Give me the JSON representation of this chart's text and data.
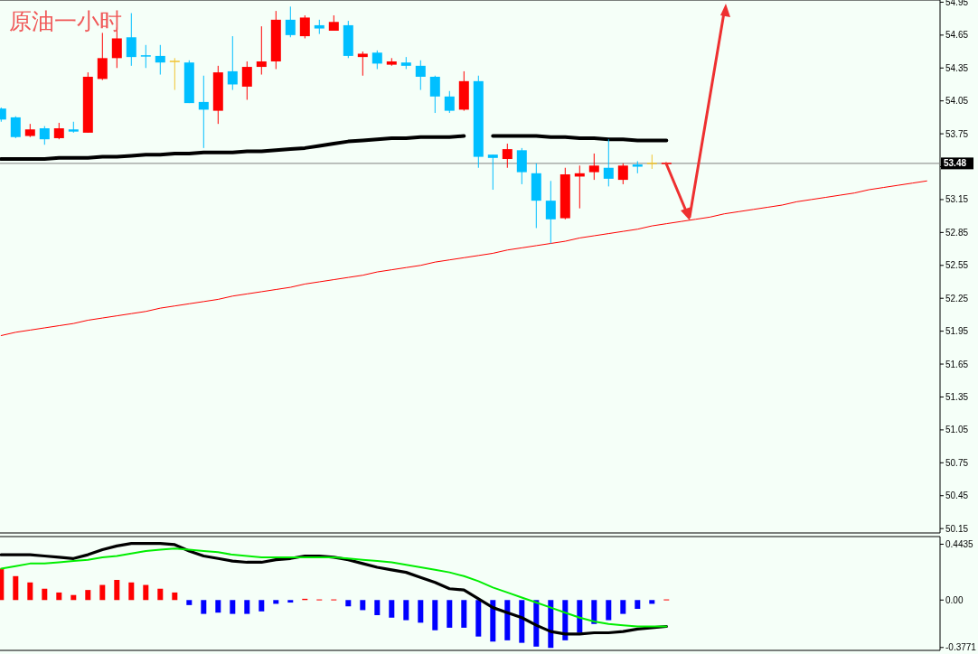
{
  "chart_data": [
    {
      "type": "candlestick",
      "title": "原油一小时",
      "categories": [
        null,
        null,
        null,
        null,
        null,
        null,
        null,
        null,
        null,
        null,
        null,
        null,
        null,
        null,
        null,
        null,
        null,
        null,
        null,
        null,
        null,
        null,
        null,
        null,
        null,
        null,
        null,
        null,
        null,
        null,
        null,
        null,
        null,
        null,
        null,
        null,
        null,
        null,
        null,
        null,
        null,
        null,
        null,
        null,
        null,
        null,
        null,
        null,
        null,
        null,
        null,
        null,
        null,
        null,
        null,
        null,
        null,
        null,
        null,
        null,
        null,
        null,
        null,
        null,
        null
      ],
      "ohlc": [
        [
          53.98,
          53.99,
          53.86,
          53.88
        ],
        [
          53.9,
          53.91,
          53.71,
          53.72
        ],
        [
          53.73,
          53.84,
          53.72,
          53.79
        ],
        [
          53.8,
          53.82,
          53.65,
          53.7
        ],
        [
          53.71,
          53.85,
          53.7,
          53.8
        ],
        [
          53.79,
          53.86,
          53.76,
          53.77
        ],
        [
          53.76,
          54.31,
          53.76,
          54.27
        ],
        [
          54.25,
          54.67,
          54.24,
          54.44
        ],
        [
          54.44,
          54.72,
          54.35,
          54.62
        ],
        [
          54.63,
          54.85,
          54.37,
          54.45
        ],
        [
          54.46,
          54.56,
          54.35,
          54.45
        ],
        [
          54.46,
          54.56,
          54.29,
          54.4
        ],
        [
          54.41,
          54.44,
          54.15,
          54.41
        ],
        [
          54.4,
          54.42,
          54.03,
          54.03
        ],
        [
          54.04,
          54.28,
          53.62,
          53.97
        ],
        [
          53.96,
          54.37,
          53.84,
          54.31
        ],
        [
          54.32,
          54.64,
          54.15,
          54.2
        ],
        [
          54.18,
          54.41,
          54.06,
          54.36
        ],
        [
          54.36,
          54.73,
          54.29,
          54.41
        ],
        [
          54.41,
          54.87,
          54.34,
          54.79
        ],
        [
          54.79,
          54.91,
          54.63,
          54.65
        ],
        [
          54.64,
          54.83,
          54.62,
          54.81
        ],
        [
          54.74,
          54.79,
          54.66,
          54.71
        ],
        [
          54.69,
          54.83,
          54.69,
          54.77
        ],
        [
          54.74,
          54.78,
          54.44,
          54.46
        ],
        [
          54.45,
          54.5,
          54.28,
          54.48
        ],
        [
          54.49,
          54.51,
          54.34,
          54.39
        ],
        [
          54.38,
          54.44,
          54.37,
          54.41
        ],
        [
          54.4,
          54.45,
          54.34,
          54.37
        ],
        [
          54.37,
          54.42,
          54.15,
          54.27
        ],
        [
          54.27,
          54.28,
          53.94,
          54.09
        ],
        [
          54.09,
          54.14,
          53.94,
          53.96
        ],
        [
          53.97,
          54.32,
          53.96,
          54.23
        ],
        [
          54.23,
          54.28,
          53.44,
          53.54
        ],
        [
          53.56,
          53.56,
          53.24,
          53.53
        ],
        [
          53.52,
          53.66,
          53.44,
          53.61
        ],
        [
          53.6,
          53.62,
          53.29,
          53.4
        ],
        [
          53.39,
          53.48,
          52.89,
          53.14
        ],
        [
          53.14,
          53.32,
          52.75,
          52.97
        ],
        [
          52.98,
          53.44,
          52.97,
          53.38
        ],
        [
          53.36,
          53.46,
          53.07,
          53.39
        ],
        [
          53.4,
          53.57,
          53.33,
          53.46
        ],
        [
          53.44,
          53.7,
          53.27,
          53.34
        ],
        [
          53.33,
          53.48,
          53.29,
          53.46
        ],
        [
          53.47,
          53.5,
          53.39,
          53.45
        ],
        [
          53.48,
          53.56,
          53.43,
          53.48
        ],
        [
          53.47,
          53.48,
          53.46,
          53.48
        ],
        null,
        null,
        null,
        null,
        null,
        null,
        null,
        null,
        null,
        null,
        null,
        null,
        null,
        null,
        null,
        null,
        null,
        null
      ],
      "colors": [
        "#00bfff",
        "#00bfff",
        "#ff0000",
        "#00bfff",
        "#ff0000",
        "#00bfff",
        "#ff0000",
        "#ff0000",
        "#ff0000",
        "#00bfff",
        "#00bfff",
        "#00bfff",
        "#f0c330",
        "#00bfff",
        "#00bfff",
        "#ff0000",
        "#00bfff",
        "#ff0000",
        "#ff0000",
        "#ff0000",
        "#00bfff",
        "#ff0000",
        "#00bfff",
        "#ff0000",
        "#00bfff",
        "#ff0000",
        "#00bfff",
        "#ff0000",
        "#00bfff",
        "#00bfff",
        "#00bfff",
        "#00bfff",
        "#ff0000",
        "#00bfff",
        "#00bfff",
        "#ff0000",
        "#00bfff",
        "#00bfff",
        "#00bfff",
        "#ff0000",
        "#ff0000",
        "#ff0000",
        "#00bfff",
        "#ff0000",
        "#00bfff",
        "#f0c330",
        "#ff0000",
        null,
        null,
        null,
        null,
        null,
        null,
        null,
        null,
        null,
        null,
        null,
        null,
        null,
        null,
        null,
        null,
        null,
        null
      ],
      "series": [
        {
          "type": "line",
          "color": "#000000",
          "values": [
            53.52,
            53.52,
            53.52,
            53.52,
            53.53,
            53.53,
            53.53,
            53.54,
            53.54,
            53.55,
            53.56,
            53.56,
            53.57,
            53.57,
            53.58,
            53.58,
            53.58,
            53.59,
            53.59,
            53.6,
            53.61,
            53.62,
            53.64,
            53.66,
            53.68,
            53.69,
            53.7,
            53.71,
            53.71,
            53.72,
            53.72,
            53.72,
            53.73,
            null,
            53.73,
            53.73,
            53.73,
            53.73,
            53.72,
            53.72,
            53.71,
            53.71,
            53.7,
            53.7,
            53.69,
            53.69,
            53.69,
            null,
            null,
            null,
            null,
            null,
            null,
            null,
            null,
            null,
            null,
            null,
            null,
            null,
            null,
            null,
            null,
            null,
            null
          ]
        },
        {
          "type": "line",
          "color": "#ff0000",
          "values": [
            51.91,
            51.94,
            51.96,
            51.98,
            52.0,
            52.02,
            52.05,
            52.07,
            52.09,
            52.11,
            52.13,
            52.16,
            52.18,
            52.2,
            52.22,
            52.24,
            52.27,
            52.29,
            52.31,
            52.33,
            52.35,
            52.38,
            52.4,
            52.42,
            52.44,
            52.46,
            52.49,
            52.51,
            52.53,
            52.55,
            52.58,
            52.6,
            52.62,
            52.64,
            52.66,
            52.69,
            52.71,
            52.73,
            52.75,
            52.77,
            52.8,
            52.82,
            52.84,
            52.86,
            52.88,
            52.91,
            52.93,
            52.95,
            52.97,
            52.99,
            53.02,
            53.04,
            53.06,
            53.08,
            53.1,
            53.13,
            53.15,
            53.17,
            53.19,
            53.21,
            53.24,
            53.26,
            53.28,
            53.3,
            53.32
          ]
        }
      ],
      "ylim": [
        50.11,
        54.97
      ],
      "yticks": [
        54.95,
        54.65,
        54.35,
        54.05,
        53.75,
        {
          "value": 53.45,
          "label": null
        },
        53.15,
        52.85,
        52.55,
        52.25,
        51.95,
        51.65,
        51.35,
        51.05,
        50.75,
        50.45,
        50.15
      ],
      "ref_lines": [
        {
          "axis": "y",
          "value": 53.48,
          "label": "53.48",
          "color": "#808080"
        }
      ],
      "tick_labels": "y"
    },
    {
      "type": "bar",
      "categories": [
        null,
        null,
        null,
        null,
        null,
        null,
        null,
        null,
        null,
        null,
        null,
        null,
        null,
        null,
        null,
        null,
        null,
        null,
        null,
        null,
        null,
        null,
        null,
        null,
        null,
        null,
        null,
        null,
        null,
        null,
        null,
        null,
        null,
        null,
        null,
        null,
        null,
        null,
        null,
        null,
        null,
        null,
        null,
        null,
        null,
        null,
        null,
        null,
        null,
        null,
        null,
        null,
        null,
        null,
        null,
        null,
        null,
        null,
        null,
        null,
        null,
        null,
        null,
        null,
        null
      ],
      "series": [
        {
          "type": "bar",
          "colors": [
            "#ff0000",
            "#ff0000",
            "#ff0000",
            "#ff0000",
            "#ff0000",
            "#ff0000",
            "#ff0000",
            "#ff0000",
            "#ff0000",
            "#ff0000",
            "#ff0000",
            "#ff0000",
            "#ff0000",
            "#0000ff",
            "#0000ff",
            "#0000ff",
            "#0000ff",
            "#0000ff",
            "#0000ff",
            "#0000ff",
            "#0000ff",
            "#ff0000",
            "#ff0000",
            "#ff0000",
            "#0000ff",
            "#0000ff",
            "#0000ff",
            "#0000ff",
            "#0000ff",
            "#0000ff",
            "#0000ff",
            "#0000ff",
            "#0000ff",
            "#0000ff",
            "#0000ff",
            "#0000ff",
            "#0000ff",
            "#0000ff",
            "#0000ff",
            "#0000ff",
            "#0000ff",
            "#0000ff",
            "#0000ff",
            "#0000ff",
            "#0000ff",
            "#0000ff",
            "#ff0000",
            null,
            null,
            null,
            null,
            null,
            null,
            null,
            null,
            null,
            null,
            null,
            null,
            null,
            null,
            null,
            null,
            null,
            null
          ],
          "values": [
            0.25,
            0.19,
            0.14,
            0.09,
            0.06,
            0.04,
            0.08,
            0.12,
            0.16,
            0.14,
            0.12,
            0.09,
            0.06,
            -0.04,
            -0.11,
            -0.1,
            -0.11,
            -0.11,
            -0.09,
            -0.03,
            -0.02,
            0.01,
            0.005,
            0.005,
            -0.05,
            -0.08,
            -0.12,
            -0.14,
            -0.16,
            -0.18,
            -0.24,
            -0.22,
            -0.22,
            -0.29,
            -0.33,
            -0.32,
            -0.34,
            -0.37,
            -0.38,
            -0.32,
            -0.26,
            -0.19,
            -0.16,
            -0.11,
            -0.07,
            -0.03,
            0.005,
            null,
            null,
            null,
            null,
            null,
            null,
            null,
            null,
            null,
            null,
            null,
            null,
            null,
            null,
            null,
            null,
            null,
            null
          ]
        },
        {
          "type": "line",
          "color": "#000000",
          "values": [
            0.36,
            0.36,
            0.36,
            0.35,
            0.34,
            0.33,
            0.36,
            0.4,
            0.43,
            0.45,
            0.45,
            0.45,
            0.44,
            0.39,
            0.35,
            0.33,
            0.31,
            0.3,
            0.3,
            0.32,
            0.33,
            0.35,
            0.35,
            0.34,
            0.32,
            0.29,
            0.26,
            0.24,
            0.22,
            0.18,
            0.14,
            0.09,
            0.08,
            0.01,
            -0.06,
            -0.1,
            -0.14,
            -0.2,
            -0.25,
            -0.27,
            -0.27,
            -0.26,
            -0.26,
            -0.25,
            -0.23,
            -0.22,
            -0.21,
            null,
            null,
            null,
            null,
            null,
            null,
            null,
            null,
            null,
            null,
            null,
            null,
            null,
            null,
            null,
            null,
            null,
            null
          ]
        },
        {
          "type": "line",
          "color": "#00ee00",
          "values": [
            0.25,
            0.27,
            0.29,
            0.29,
            0.3,
            0.31,
            0.32,
            0.34,
            0.35,
            0.37,
            0.39,
            0.4,
            0.41,
            0.4,
            0.39,
            0.38,
            0.36,
            0.35,
            0.34,
            0.34,
            0.34,
            0.34,
            0.34,
            0.34,
            0.33,
            0.32,
            0.31,
            0.3,
            0.28,
            0.26,
            0.24,
            0.22,
            0.19,
            0.15,
            0.1,
            0.06,
            0.02,
            -0.02,
            -0.06,
            -0.1,
            -0.14,
            -0.17,
            -0.19,
            -0.2,
            -0.21,
            -0.21,
            -0.21,
            null,
            null,
            null,
            null,
            null,
            null,
            null,
            null,
            null,
            null,
            null,
            null,
            null,
            null,
            null,
            null,
            null,
            null
          ]
        }
      ],
      "ylim": [
        -0.4,
        0.49
      ],
      "yticks": [
        0.4435,
        {
          "value": 0,
          "label": "0.00"
        },
        -0.3771
      ],
      "tick_labels": "y"
    }
  ]
}
